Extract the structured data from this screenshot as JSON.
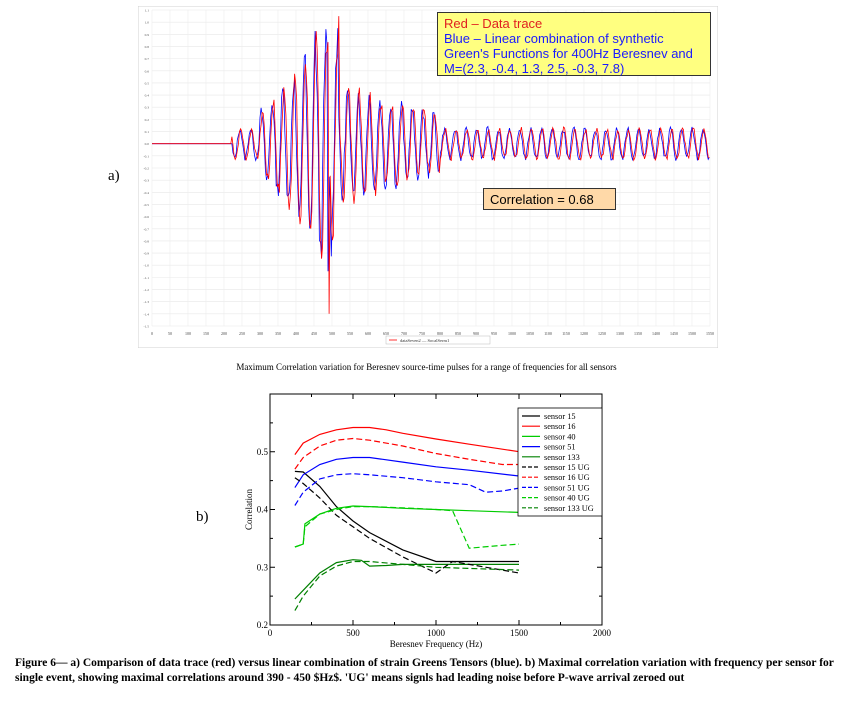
{
  "panel_a": {
    "label": "a)",
    "legend_line1": "Red – Data trace",
    "legend_line2": "Blue – Linear combination of synthetic Green's Functions for 400Hz Beresnev and M=(2.3, -0.4, 1.3, 2.5, -0.3, 7.8)",
    "correlation_text": "Correlation = 0.68",
    "mini_legend": "dataSeven2 — SocalSerm1"
  },
  "panel_b": {
    "label": "b)",
    "title": "Maximum Correlation variation for Beresnev source-time pulses for a range of frequencies for all sensors"
  },
  "caption": "Figure 6— a) Comparison of data trace (red) versus linear combination of strain Greens Tensors (blue). b) Maximal correlation variation with frequency per sensor for single event, showing maximal correlations around 390 - 450 $Hz$. 'UG' means signls had leading noise before P-wave arrival zeroed out",
  "colors": {
    "red": "#ff0000",
    "blue": "#0000ff",
    "green": "#00cc00",
    "darkgreen": "#008000",
    "black": "#000000"
  },
  "chart_data": [
    {
      "type": "line",
      "title": "",
      "xlabel": "",
      "ylabel": "",
      "xlim": [
        0,
        1550
      ],
      "ylim": [
        -1.5,
        1.1
      ],
      "x_ticks": [
        0,
        50,
        100,
        150,
        200,
        250,
        300,
        350,
        400,
        450,
        500,
        550,
        600,
        650,
        700,
        750,
        800,
        850,
        900,
        950,
        1000,
        1050,
        1100,
        1150,
        1200,
        1250,
        1300,
        1350,
        1400,
        1450,
        1500,
        1550
      ],
      "series": [
        {
          "name": "Red – Data trace",
          "color": "#ff0000"
        },
        {
          "name": "Blue – Linear combination of synthetic Green's Functions for 400Hz Beresnev and M=(2.3, -0.4, 1.3, 2.5, -0.3, 7.8)",
          "color": "#0000ff"
        }
      ],
      "annotation": "Correlation = 0.68"
    },
    {
      "type": "line",
      "title": "Maximum Correlation variation for Beresnev source-time pulses for a range of frequencies for all sensors",
      "xlabel": "Beresnev Frequency (Hz)",
      "ylabel": "Correlation",
      "xlim": [
        0,
        2000
      ],
      "ylim": [
        0.2,
        0.6
      ],
      "x_ticks": [
        0,
        500,
        1000,
        1500,
        2000
      ],
      "y_ticks": [
        0.2,
        0.3,
        0.4,
        0.5
      ],
      "grid": false,
      "legend_position": "top-right",
      "series": [
        {
          "name": "sensor 15",
          "color": "#000000",
          "dash": false,
          "x": [
            150,
            200,
            300,
            400,
            500,
            600,
            800,
            1000,
            1100,
            1500
          ],
          "y": [
            0.466,
            0.465,
            0.44,
            0.405,
            0.38,
            0.36,
            0.33,
            0.31,
            0.31,
            0.31
          ]
        },
        {
          "name": "sensor 16",
          "color": "#ff0000",
          "dash": false,
          "x": [
            150,
            200,
            300,
            400,
            500,
            600,
            700,
            800,
            1000,
            1200,
            1500
          ],
          "y": [
            0.495,
            0.515,
            0.53,
            0.538,
            0.542,
            0.542,
            0.538,
            0.532,
            0.522,
            0.513,
            0.5
          ]
        },
        {
          "name": "sensor 40",
          "color": "#00cc00",
          "dash": false,
          "x": [
            150,
            200,
            210,
            300,
            400,
            500,
            600,
            800,
            1000,
            1200,
            1500
          ],
          "y": [
            0.335,
            0.34,
            0.375,
            0.392,
            0.402,
            0.406,
            0.405,
            0.402,
            0.4,
            0.398,
            0.395
          ]
        },
        {
          "name": "sensor 51",
          "color": "#0000ff",
          "dash": false,
          "x": [
            150,
            200,
            300,
            400,
            500,
            600,
            800,
            1000,
            1200,
            1500
          ],
          "y": [
            0.438,
            0.46,
            0.478,
            0.487,
            0.49,
            0.49,
            0.482,
            0.474,
            0.468,
            0.458
          ]
        },
        {
          "name": "sensor 133",
          "color": "#008000",
          "dash": false,
          "x": [
            150,
            200,
            300,
            400,
            500,
            550,
            600,
            700,
            800,
            1000,
            1500
          ],
          "y": [
            0.245,
            0.26,
            0.29,
            0.308,
            0.313,
            0.312,
            0.302,
            0.303,
            0.305,
            0.305,
            0.305
          ]
        },
        {
          "name": "sensor 15 UG",
          "color": "#000000",
          "dash": true,
          "x": [
            150,
            200,
            300,
            400,
            500,
            600,
            800,
            1000,
            1100,
            1500
          ],
          "y": [
            0.455,
            0.445,
            0.42,
            0.39,
            0.37,
            0.35,
            0.318,
            0.29,
            0.31,
            0.29
          ]
        },
        {
          "name": "sensor 16 UG",
          "color": "#ff0000",
          "dash": true,
          "x": [
            150,
            200,
            300,
            400,
            500,
            600,
            800,
            1000,
            1200,
            1400,
            1500
          ],
          "y": [
            0.47,
            0.49,
            0.51,
            0.52,
            0.523,
            0.52,
            0.51,
            0.497,
            0.487,
            0.478,
            0.478
          ]
        },
        {
          "name": "sensor 51 UG",
          "color": "#0000ff",
          "dash": true,
          "x": [
            150,
            200,
            300,
            400,
            500,
            600,
            800,
            1000,
            1200,
            1300,
            1400,
            1500
          ],
          "y": [
            0.407,
            0.43,
            0.453,
            0.46,
            0.462,
            0.46,
            0.455,
            0.448,
            0.443,
            0.43,
            0.432,
            0.437
          ]
        },
        {
          "name": "sensor 40 UG",
          "color": "#00cc00",
          "dash": true,
          "x": [
            150,
            200,
            210,
            300,
            400,
            500,
            600,
            800,
            1000,
            1100,
            1200,
            1400,
            1500
          ],
          "y": [
            0.335,
            0.34,
            0.37,
            0.392,
            0.4,
            0.405,
            0.405,
            0.403,
            0.4,
            0.398,
            0.333,
            0.338,
            0.34
          ]
        },
        {
          "name": "sensor 133 UG",
          "color": "#008000",
          "dash": true,
          "x": [
            150,
            200,
            300,
            400,
            500,
            600,
            800,
            1000,
            1500
          ],
          "y": [
            0.225,
            0.25,
            0.285,
            0.302,
            0.31,
            0.31,
            0.305,
            0.3,
            0.295
          ]
        }
      ]
    }
  ]
}
